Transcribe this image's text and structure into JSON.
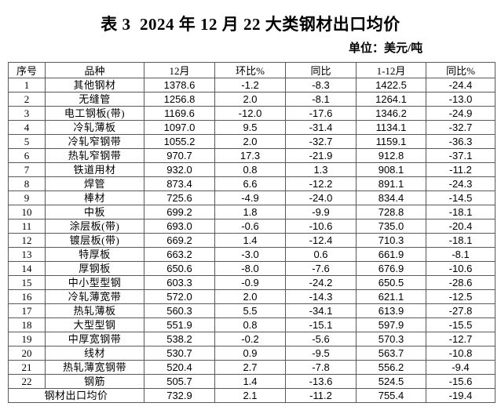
{
  "page": {
    "title": "表 3  2024 年 12 月 22 大类钢材出口均价",
    "unit_label": "单位：美元/吨"
  },
  "table": {
    "columns": [
      "序号",
      "品种",
      "12月",
      "环比%",
      "同比",
      "1-12月",
      "同比%"
    ],
    "rows": [
      [
        "1",
        "其他钢材",
        "1378.6",
        "-1.2",
        "-8.3",
        "1422.5",
        "-24.4"
      ],
      [
        "2",
        "无缝管",
        "1256.8",
        "2.0",
        "-8.1",
        "1264.1",
        "-13.0"
      ],
      [
        "3",
        "电工钢板(带)",
        "1169.6",
        "-12.0",
        "-17.6",
        "1346.2",
        "-24.9"
      ],
      [
        "4",
        "冷轧薄板",
        "1097.0",
        "9.5",
        "-31.4",
        "1134.1",
        "-32.7"
      ],
      [
        "5",
        "冷轧窄钢带",
        "1055.2",
        "2.0",
        "-32.7",
        "1159.1",
        "-36.3"
      ],
      [
        "6",
        "热轧窄钢带",
        "970.7",
        "17.3",
        "-21.9",
        "912.8",
        "-37.1"
      ],
      [
        "7",
        "铁道用材",
        "932.0",
        "0.8",
        "1.3",
        "908.1",
        "-11.2"
      ],
      [
        "8",
        "焊管",
        "873.4",
        "6.6",
        "-12.2",
        "891.1",
        "-24.3"
      ],
      [
        "9",
        "棒材",
        "725.6",
        "-4.9",
        "-24.0",
        "834.4",
        "-14.5"
      ],
      [
        "10",
        "中板",
        "699.2",
        "1.8",
        "-9.9",
        "728.8",
        "-18.1"
      ],
      [
        "11",
        "涂层板(带)",
        "693.0",
        "-0.6",
        "-10.6",
        "735.0",
        "-20.4"
      ],
      [
        "12",
        "镀层板(带)",
        "669.2",
        "1.4",
        "-12.4",
        "710.3",
        "-18.1"
      ],
      [
        "13",
        "特厚板",
        "663.2",
        "-3.0",
        "0.6",
        "661.9",
        "-8.1"
      ],
      [
        "14",
        "厚钢板",
        "650.6",
        "-8.0",
        "-7.6",
        "676.9",
        "-10.6"
      ],
      [
        "15",
        "中小型型钢",
        "603.3",
        "-0.9",
        "-24.2",
        "650.5",
        "-28.6"
      ],
      [
        "16",
        "冷轧薄宽带",
        "572.0",
        "2.0",
        "-14.3",
        "621.1",
        "-12.5"
      ],
      [
        "17",
        "热轧薄板",
        "560.3",
        "5.5",
        "-34.1",
        "613.9",
        "-27.8"
      ],
      [
        "18",
        "大型型钢",
        "551.9",
        "0.8",
        "-15.1",
        "597.9",
        "-15.5"
      ],
      [
        "19",
        "中厚宽钢带",
        "538.2",
        "-0.2",
        "-5.6",
        "570.3",
        "-12.7"
      ],
      [
        "20",
        "线材",
        "530.7",
        "0.9",
        "-9.5",
        "563.7",
        "-10.8"
      ],
      [
        "21",
        "热轧薄宽钢带",
        "520.4",
        "2.7",
        "-7.8",
        "556.2",
        "-9.4"
      ],
      [
        "22",
        "钢筋",
        "505.7",
        "1.4",
        "-13.6",
        "524.5",
        "-15.6"
      ]
    ],
    "footer": {
      "label": "钢材出口均价",
      "values": [
        "732.9",
        "2.1",
        "-11.2",
        "755.4",
        "-19.4"
      ]
    }
  }
}
